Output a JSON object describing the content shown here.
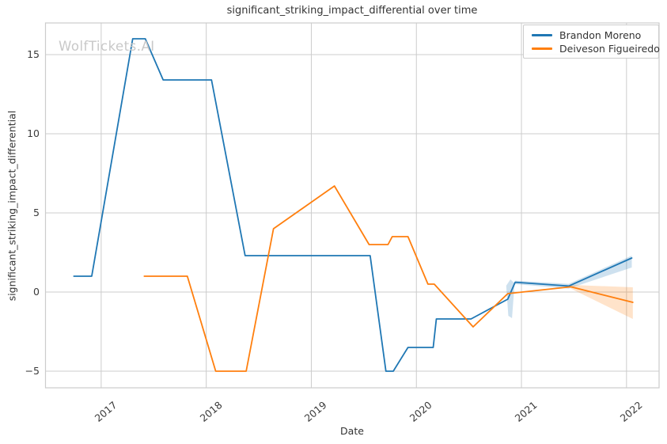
{
  "chart_data": {
    "type": "line",
    "title": "significant_striking_impact_differential over time",
    "xlabel": "Date",
    "ylabel": "significant_striking_impact_differential",
    "watermark": "WolfTickets.AI",
    "grid": true,
    "legend_position": "upper right",
    "xlim": [
      2016.47,
      2022.31
    ],
    "ylim": [
      -6.05,
      17.0
    ],
    "x_ticks": [
      {
        "v": 2017,
        "label": "2017"
      },
      {
        "v": 2018,
        "label": "2018"
      },
      {
        "v": 2019,
        "label": "2019"
      },
      {
        "v": 2020,
        "label": "2020"
      },
      {
        "v": 2021,
        "label": "2021"
      },
      {
        "v": 2022,
        "label": "2022"
      }
    ],
    "y_ticks": [
      {
        "v": -5,
        "label": "−5"
      },
      {
        "v": 0,
        "label": "0"
      },
      {
        "v": 5,
        "label": "5"
      },
      {
        "v": 10,
        "label": "10"
      },
      {
        "v": 15,
        "label": "15"
      }
    ],
    "colors": {
      "background": "#ffffff",
      "grid": "#cccccc",
      "spine": "#cccccc",
      "text": "#333333",
      "blue": "#1f77b4",
      "orange": "#ff7f0e",
      "watermark": "#c8c8c8"
    },
    "series": [
      {
        "name": "Brandon Moreno",
        "color": "#1f77b4",
        "line_width": 1.8,
        "points": [
          [
            2016.74,
            1.0
          ],
          [
            2016.91,
            1.0
          ],
          [
            2017.3,
            16.0
          ],
          [
            2017.42,
            16.0
          ],
          [
            2017.59,
            13.4
          ],
          [
            2018.05,
            13.4
          ],
          [
            2018.37,
            2.3
          ],
          [
            2019.56,
            2.3
          ],
          [
            2019.71,
            -5.0
          ],
          [
            2019.78,
            -5.0
          ],
          [
            2019.92,
            -3.5
          ],
          [
            2020.16,
            -3.5
          ],
          [
            2020.19,
            -1.7
          ],
          [
            2020.52,
            -1.7
          ],
          [
            2020.87,
            -0.45
          ],
          [
            2020.94,
            0.62
          ],
          [
            2021.45,
            0.38
          ],
          [
            2022.05,
            2.15
          ]
        ]
      },
      {
        "name": "Deiveson Figueiredo",
        "color": "#ff7f0e",
        "line_width": 1.8,
        "points": [
          [
            2017.41,
            1.0
          ],
          [
            2017.82,
            1.0
          ],
          [
            2018.09,
            -5.0
          ],
          [
            2018.38,
            -5.0
          ],
          [
            2018.64,
            4.0
          ],
          [
            2019.22,
            6.7
          ],
          [
            2019.55,
            3.0
          ],
          [
            2019.73,
            3.0
          ],
          [
            2019.77,
            3.5
          ],
          [
            2019.92,
            3.5
          ],
          [
            2020.11,
            0.5
          ],
          [
            2020.17,
            0.5
          ],
          [
            2020.54,
            -2.2
          ],
          [
            2020.87,
            -0.1
          ],
          [
            2021.47,
            0.33
          ],
          [
            2022.06,
            -0.65
          ]
        ]
      }
    ],
    "bands": [
      {
        "series": "Brandon Moreno",
        "color": "#1f77b4",
        "opacity": 0.22,
        "polygon": [
          [
            2020.855,
            0.4
          ],
          [
            2020.895,
            0.8
          ],
          [
            2020.935,
            0.55
          ],
          [
            2020.91,
            -1.65
          ],
          [
            2020.875,
            -1.5
          ]
        ]
      },
      {
        "series": "Brandon Moreno",
        "color": "#1f77b4",
        "opacity": 0.22,
        "polygon": [
          [
            2020.94,
            0.72
          ],
          [
            2021.45,
            0.52
          ],
          [
            2022.05,
            2.3
          ],
          [
            2022.05,
            1.55
          ],
          [
            2021.45,
            0.22
          ],
          [
            2020.94,
            0.5
          ]
        ]
      },
      {
        "series": "Deiveson Figueiredo",
        "color": "#ff7f0e",
        "opacity": 0.22,
        "polygon": [
          [
            2021.47,
            0.45
          ],
          [
            2022.06,
            0.3
          ],
          [
            2022.06,
            -1.7
          ],
          [
            2021.47,
            0.22
          ]
        ]
      }
    ]
  }
}
